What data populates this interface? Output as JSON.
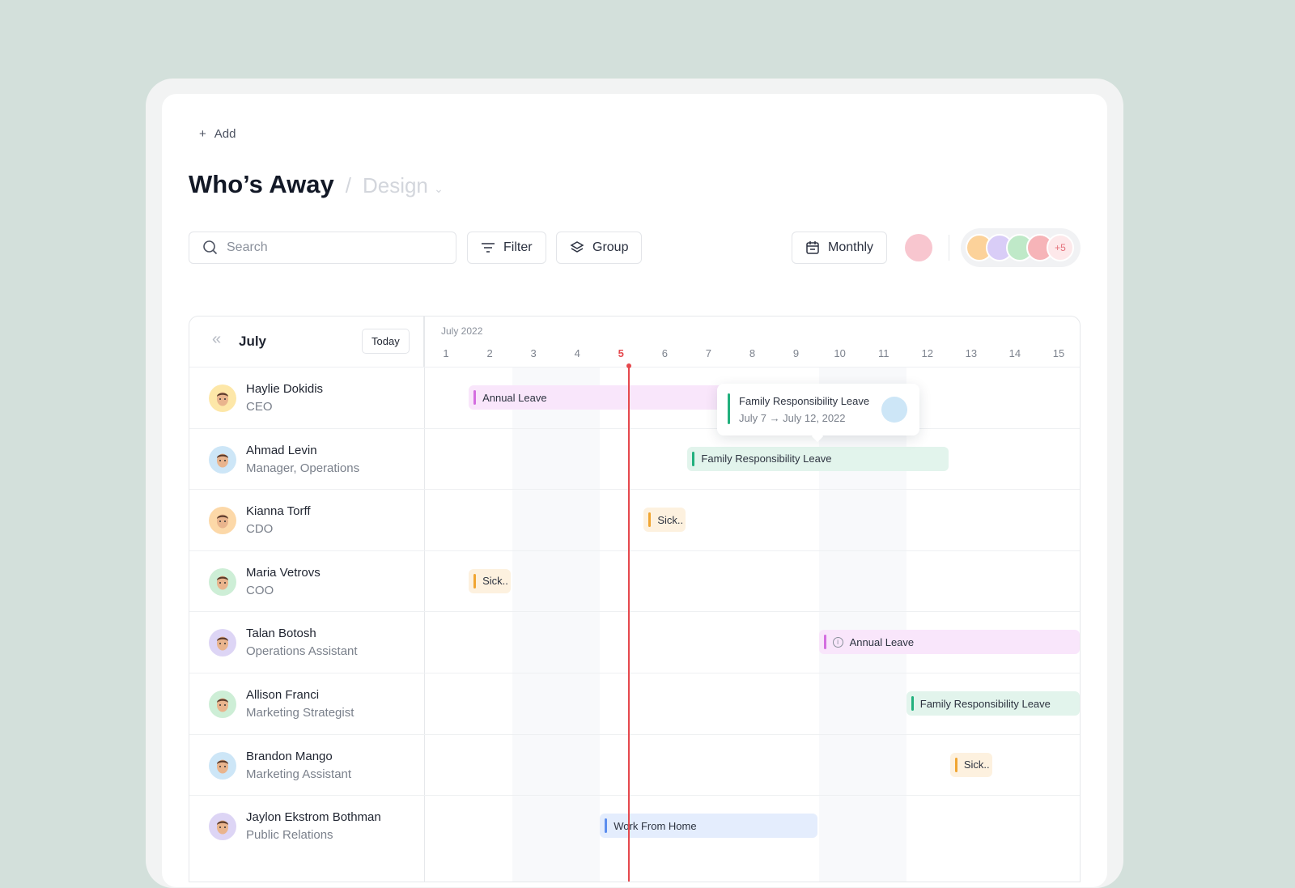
{
  "header": {
    "add_label": "Add",
    "title": "Who’s Away",
    "separator": "/",
    "subtitle": "Design"
  },
  "toolbar": {
    "search_placeholder": "Search",
    "filter_label": "Filter",
    "group_label": "Group",
    "view_label": "Monthly",
    "extra_members": "+5"
  },
  "calendar": {
    "month": "July",
    "today_label": "Today",
    "period": "July 2022",
    "days": [
      "1",
      "2",
      "3",
      "4",
      "5",
      "6",
      "7",
      "8",
      "9",
      "10",
      "11",
      "12",
      "13",
      "14",
      "15"
    ],
    "current_day": "5",
    "today_color": "#e5484d"
  },
  "colors": {
    "annual": "#f9e6fb",
    "annual_accent": "#d46ee0",
    "family": "#e2f4ec",
    "family_accent": "#22b07d",
    "sick": "#fdf1df",
    "sick_accent": "#f0a532",
    "wfh": "#e4edfd",
    "wfh_accent": "#5b8def"
  },
  "people": [
    {
      "name": "Haylie Dokidis",
      "role": "CEO",
      "avatar": "#fde7a8"
    },
    {
      "name": "Ahmad Levin",
      "role": "Manager, Operations",
      "avatar": "#cde6f7"
    },
    {
      "name": "Kianna Torff",
      "role": "CDO",
      "avatar": "#fcd8a8"
    },
    {
      "name": "Maria Vetrovs",
      "role": "COO",
      "avatar": "#cdeed6"
    },
    {
      "name": "Talan Botosh",
      "role": "Operations Assistant",
      "avatar": "#ddd5f5"
    },
    {
      "name": "Allison Franci",
      "role": "Marketing Strategist",
      "avatar": "#cdeed6"
    },
    {
      "name": "Brandon Mango",
      "role": "Marketing Assistant",
      "avatar": "#cde6f7"
    },
    {
      "name": "Jaylon Ekstrom Bothman",
      "role": "Public Relations",
      "avatar": "#ddd5f5"
    }
  ],
  "leaves": [
    {
      "row": 0,
      "type": "annual",
      "label": "Annual Leave",
      "start": 2,
      "end": 7
    },
    {
      "row": 1,
      "type": "family",
      "label": "Family Responsibility Leave",
      "start": 7,
      "end": 12
    },
    {
      "row": 2,
      "type": "sick",
      "label": "Sick..",
      "start": 6,
      "end": 6
    },
    {
      "row": 3,
      "type": "sick",
      "label": "Sick..",
      "start": 2,
      "end": 2
    },
    {
      "row": 4,
      "type": "annual",
      "label": "Annual Leave",
      "start": 10,
      "end": 15,
      "icon": "info-icon"
    },
    {
      "row": 5,
      "type": "family",
      "label": "Family Responsibility Leave",
      "start": 12,
      "end": 15
    },
    {
      "row": 6,
      "type": "sick",
      "label": "Sick..",
      "start": 13,
      "end": 13
    },
    {
      "row": 7,
      "type": "wfh",
      "label": "Work From Home",
      "start": 5,
      "end": 9
    }
  ],
  "tooltip": {
    "title": "Family Responsibility Leave",
    "dates": "July 7 → July 12, 2022"
  }
}
